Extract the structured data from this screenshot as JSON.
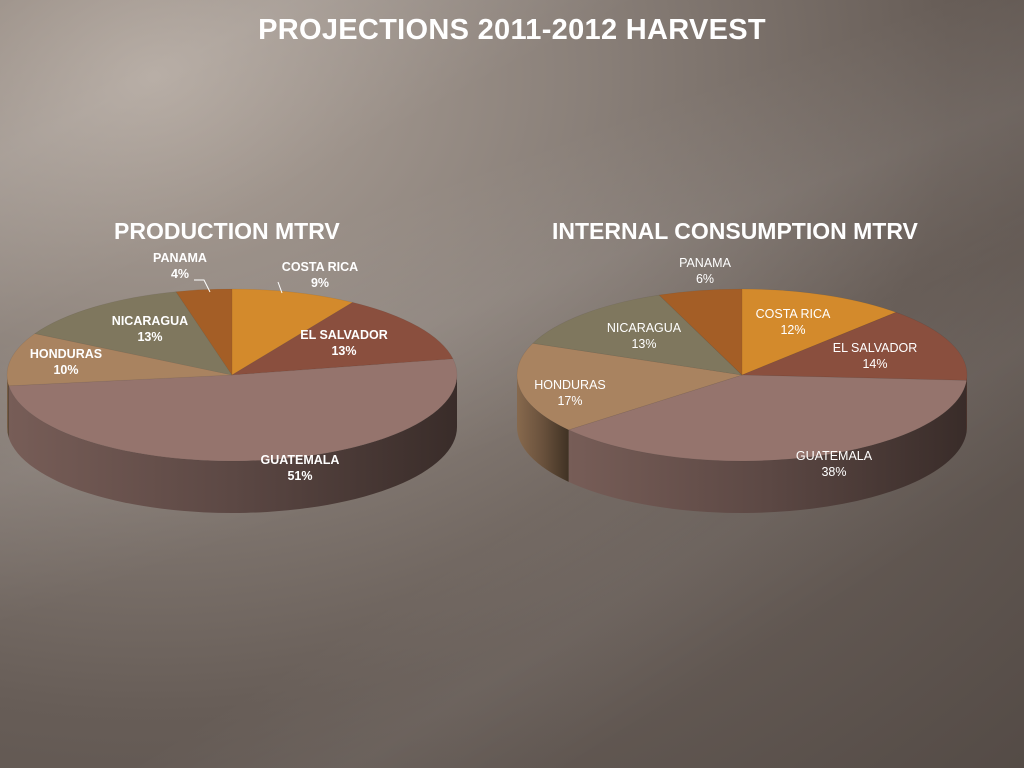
{
  "title": "PROJECTIONS 2011-2012 HARVEST",
  "colors": {
    "COSTA RICA": "#d38a2c",
    "EL SALVADOR": "#8a4f3e",
    "GUATEMALA": "#95746d",
    "HONDURAS": "#a98360",
    "NICARAGUA": "#7f775e",
    "PANAMA": "#a45e26"
  },
  "chart_data": [
    {
      "type": "pie",
      "title": "PRODUCTION MTRV",
      "slices": [
        {
          "label": "COSTA RICA",
          "percent_label": "9%",
          "value": 9
        },
        {
          "label": "EL SALVADOR",
          "percent_label": "13%",
          "value": 13
        },
        {
          "label": "GUATEMALA",
          "percent_label": "51%",
          "value": 51
        },
        {
          "label": "HONDURAS",
          "percent_label": "10%",
          "value": 10
        },
        {
          "label": "NICARAGUA",
          "percent_label": "13%",
          "value": 13
        },
        {
          "label": "PANAMA",
          "percent_label": "4%",
          "value": 4
        }
      ]
    },
    {
      "type": "pie",
      "title": "INTERNAL CONSUMPTION MTRV",
      "slices": [
        {
          "label": "COSTA RICA",
          "percent_label": "12%",
          "value": 12
        },
        {
          "label": "EL SALVADOR",
          "percent_label": "14%",
          "value": 14
        },
        {
          "label": "GUATEMALA",
          "percent_label": "38%",
          "value": 38
        },
        {
          "label": "HONDURAS",
          "percent_label": "17%",
          "value": 17
        },
        {
          "label": "NICARAGUA",
          "percent_label": "13%",
          "value": 13
        },
        {
          "label": "PANAMA",
          "percent_label": "6%",
          "value": 6
        }
      ]
    }
  ]
}
